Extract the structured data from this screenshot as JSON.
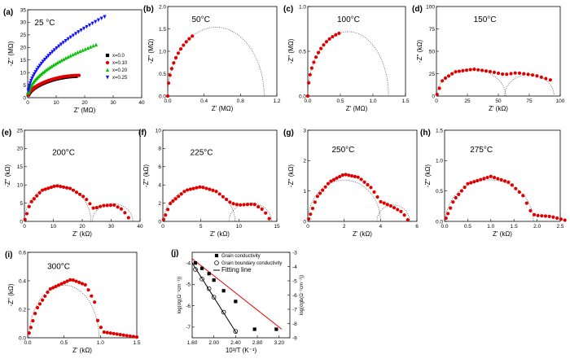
{
  "panels": [
    {
      "label": "(a)",
      "temp": "25 °C",
      "xlabel": "Z' (MΩ)",
      "ylabel": "-Z'' (MΩ)",
      "xlim": [
        0,
        40
      ],
      "ylim": [
        0,
        35
      ],
      "xticks": [
        "0",
        "10",
        "20",
        "30",
        "40"
      ],
      "yticks": [
        "0",
        "5",
        "10",
        "15",
        "20",
        "25",
        "30",
        "35"
      ],
      "legend": [
        "x=0.0",
        "x=0.10",
        "x=0.20",
        "x=0.25"
      ],
      "series": [
        {
          "name": "x=0.0",
          "color": "#000000",
          "marker": "square",
          "k": 2.5,
          "xmax": 17
        },
        {
          "name": "x=0.10",
          "color": "#e00000",
          "marker": "circle",
          "k": 2.6,
          "xmax": 18
        },
        {
          "name": "x=0.20",
          "color": "#00c000",
          "marker": "triangle-up",
          "k": 4.3,
          "xmax": 24
        },
        {
          "name": "x=0.25",
          "color": "#1010ff",
          "marker": "triangle-down",
          "k": 6.2,
          "xmax": 27
        }
      ]
    },
    {
      "label": "(b)",
      "temp": "50°C",
      "xlabel": "Z' (MΩ)",
      "ylabel": "-Z'' (MΩ)",
      "xlim": [
        0,
        1.2
      ],
      "ylim": [
        0,
        2.0
      ],
      "xticks": [
        "0.0",
        "0.4",
        "0.8",
        "1.2"
      ],
      "yticks": [
        "0.0",
        "0.5",
        "1.0",
        "1.5",
        "2.0"
      ],
      "fits": [
        {
          "c": 0.53,
          "r": 0.53,
          "yscale": 2.9
        }
      ],
      "points": {
        "x0": 0.0,
        "x1": 0.27,
        "n": 12,
        "c": 0.53,
        "r": 0.53,
        "yscale": 2.9
      }
    },
    {
      "label": "(c)",
      "temp": "100°C",
      "xlabel": "Z' (MΩ)",
      "ylabel": "-Z'' (MΩ)",
      "xlim": [
        0,
        1.5
      ],
      "ylim": [
        0,
        1.0
      ],
      "xticks": [
        "0.0",
        "0.5",
        "1.0",
        "1.5"
      ],
      "yticks": [
        "0.0",
        "0.5",
        "1.0"
      ],
      "fits": [
        {
          "c": 0.62,
          "r": 0.62,
          "yscale": 1.16
        }
      ],
      "points": {
        "x0": 0.0,
        "x1": 0.48,
        "n": 14,
        "c": 0.62,
        "r": 0.62,
        "yscale": 1.16
      }
    },
    {
      "label": "(d)",
      "temp": "150°C",
      "xlabel": "Z' (kΩ)",
      "ylabel": "-Z'' (kΩ)",
      "xlim": [
        0,
        100
      ],
      "ylim": [
        0,
        100
      ],
      "xticks": [
        "0",
        "25",
        "50",
        "75",
        "100"
      ],
      "yticks": [
        "0",
        "25",
        "50",
        "75",
        "100"
      ],
      "fits": [
        {
          "c": 28,
          "r": 28,
          "yscale": 1.07
        },
        {
          "c": 75,
          "r": 20,
          "yscale": 1.2
        }
      ],
      "points": {
        "x0": 0.5,
        "x1": 92,
        "n": 30,
        "profile": [
          [
            0,
            0
          ],
          [
            5,
            18
          ],
          [
            15,
            27
          ],
          [
            30,
            30
          ],
          [
            45,
            27
          ],
          [
            55,
            24
          ],
          [
            65,
            26
          ],
          [
            80,
            23
          ],
          [
            92,
            18
          ]
        ]
      }
    },
    {
      "label": "(e)",
      "temp": "200°C",
      "xlabel": "Z' (kΩ)",
      "ylabel": "-Z'' (kΩ)",
      "xlim": [
        0,
        40
      ],
      "ylim": [
        0,
        25
      ],
      "xticks": [
        "0",
        "10",
        "20",
        "30",
        "40"
      ],
      "yticks": [
        "0",
        "5",
        "10",
        "15",
        "20",
        "25"
      ],
      "fits": [
        {
          "c": 11.5,
          "r": 11.5,
          "yscale": 0.85
        },
        {
          "c": 30.5,
          "r": 7,
          "yscale": 0.7
        }
      ],
      "points": {
        "x0": 0.2,
        "x1": 36,
        "n": 34,
        "profile": [
          [
            0,
            0
          ],
          [
            2,
            5
          ],
          [
            6,
            8.5
          ],
          [
            11,
            9.8
          ],
          [
            16,
            9
          ],
          [
            21,
            6.5
          ],
          [
            24,
            3.5
          ],
          [
            27,
            4.3
          ],
          [
            31,
            4.5
          ],
          [
            34,
            3.2
          ],
          [
            36,
            1
          ]
        ]
      }
    },
    {
      "label": "(f)",
      "temp": "225°C",
      "xlabel": "Z' (kΩ)",
      "ylabel": "-Z'' (kΩ)",
      "xlim": [
        0,
        15
      ],
      "ylim": [
        0,
        10
      ],
      "xticks": [
        "0",
        "5",
        "10",
        "15"
      ],
      "yticks": [
        "0",
        "2",
        "4",
        "6",
        "8",
        "10"
      ],
      "fits": [
        {
          "c": 4.8,
          "r": 4.7,
          "yscale": 0.78
        },
        {
          "c": 11.5,
          "r": 2.8,
          "yscale": 0.72
        }
      ],
      "points": {
        "x0": 0.1,
        "x1": 14,
        "n": 34,
        "profile": [
          [
            0,
            0
          ],
          [
            1,
            2
          ],
          [
            3,
            3.4
          ],
          [
            5,
            3.8
          ],
          [
            7,
            3.3
          ],
          [
            9,
            2.0
          ],
          [
            10,
            1.8
          ],
          [
            12,
            1.9
          ],
          [
            13.3,
            1.2
          ],
          [
            14,
            0.3
          ]
        ]
      }
    },
    {
      "label": "(g)",
      "temp": "250°C",
      "xlabel": "Z' (kΩ)",
      "ylabel": "-Z'' (kΩ)",
      "xlim": [
        0,
        6
      ],
      "ylim": [
        0,
        3
      ],
      "xticks": [
        "0",
        "2",
        "4",
        "6"
      ],
      "yticks": [
        "0",
        "1",
        "2",
        "3"
      ],
      "fits": [
        {
          "c": 2.0,
          "r": 2.0,
          "yscale": 0.68
        },
        {
          "c": 4.7,
          "r": 0.9,
          "yscale": 0.6
        }
      ],
      "points": {
        "x0": 0.05,
        "x1": 5.5,
        "n": 34,
        "profile": [
          [
            0,
            0
          ],
          [
            0.5,
            0.8
          ],
          [
            1.2,
            1.3
          ],
          [
            2,
            1.55
          ],
          [
            2.8,
            1.45
          ],
          [
            3.5,
            1.1
          ],
          [
            4,
            0.65
          ],
          [
            4.6,
            0.5
          ],
          [
            5.2,
            0.3
          ],
          [
            5.5,
            0.05
          ]
        ]
      }
    },
    {
      "label": "(h)",
      "temp": "275°C",
      "xlabel": "Z' (kΩ)",
      "ylabel": "-Z'' (kΩ)",
      "xlim": [
        0,
        2.5
      ],
      "ylim": [
        0,
        1.5
      ],
      "xticks": [
        "0.0",
        "0.5",
        "1.0",
        "1.5",
        "2.0",
        "2.5"
      ],
      "yticks": [
        "0.0",
        "0.5",
        "1.0",
        "1.5"
      ],
      "fits": [
        {
          "c": 0.97,
          "r": 0.95,
          "yscale": 0.72
        }
      ],
      "points": {
        "x0": 0.03,
        "x1": 2.6,
        "n": 36,
        "profile": [
          [
            0,
            0
          ],
          [
            0.2,
            0.35
          ],
          [
            0.5,
            0.62
          ],
          [
            1.0,
            0.74
          ],
          [
            1.4,
            0.64
          ],
          [
            1.7,
            0.42
          ],
          [
            1.85,
            0.18
          ],
          [
            1.95,
            0.1
          ],
          [
            2.3,
            0.08
          ],
          [
            2.6,
            0.02
          ]
        ]
      }
    },
    {
      "label": "(i)",
      "temp": "300°C",
      "xlabel": "Z' (kΩ)",
      "ylabel": "-Z'' (kΩ)",
      "xlim": [
        0,
        1.5
      ],
      "ylim": [
        0,
        0.6
      ],
      "xticks": [
        "0.0",
        "0.5",
        "1.0",
        "1.5"
      ],
      "yticks": [
        "0.0",
        "0.2",
        "0.4",
        "0.6"
      ],
      "fits": [
        {
          "c": 0.5,
          "r": 0.48,
          "yscale": 0.77
        }
      ],
      "points": {
        "x0": 0.02,
        "x1": 1.5,
        "n": 38,
        "profile": [
          [
            0,
            0
          ],
          [
            0.12,
            0.2
          ],
          [
            0.3,
            0.34
          ],
          [
            0.6,
            0.41
          ],
          [
            0.8,
            0.37
          ],
          [
            0.92,
            0.25
          ],
          [
            0.97,
            0.1
          ],
          [
            1.05,
            0.04
          ],
          [
            1.3,
            0.02
          ],
          [
            1.5,
            0.005
          ]
        ]
      }
    }
  ],
  "panel_j": {
    "label": "(j)",
    "xlabel": "10³/T (K⁻¹)",
    "ylabel_left": "log(σg(Ω⁻¹cm⁻¹))",
    "ylabel_right": "log(σgb(Ω⁻¹cm⁻¹))",
    "xlim": [
      1.6,
      3.4
    ],
    "ylim_left": [
      -7.5,
      -3.5
    ],
    "ylim_right": [
      -9,
      -3
    ],
    "xticks": [
      "1.60",
      "2.00",
      "2.40",
      "2.80",
      "3.20"
    ],
    "yticks_left": [
      "-4",
      "-5",
      "-6",
      "-7"
    ],
    "yticks_right": [
      "-3",
      "-4",
      "-5",
      "-6",
      "-7",
      "-8",
      "-9"
    ],
    "legend": [
      "Grain conductivity",
      "Grain boundary conductivity",
      "Fitting line"
    ],
    "grain": {
      "x": [
        1.66,
        1.78,
        1.91,
        2.0,
        2.18,
        2.4,
        2.75,
        3.15
      ],
      "y": [
        -4.0,
        -4.25,
        -4.5,
        -4.8,
        -5.3,
        -5.8,
        -7.1,
        -7.1
      ]
    },
    "grain_fit": {
      "x": [
        1.6,
        3.25
      ],
      "y": [
        -3.8,
        -7.1
      ]
    },
    "gb": {
      "x": [
        1.66,
        1.78,
        1.91,
        2.0,
        2.18,
        2.4
      ],
      "y": [
        -4.3,
        -4.75,
        -5.2,
        -5.6,
        -6.3,
        -7.2
      ]
    },
    "gb_fit": {
      "x": [
        1.6,
        2.42
      ],
      "y": [
        -4.0,
        -7.3
      ]
    }
  }
}
